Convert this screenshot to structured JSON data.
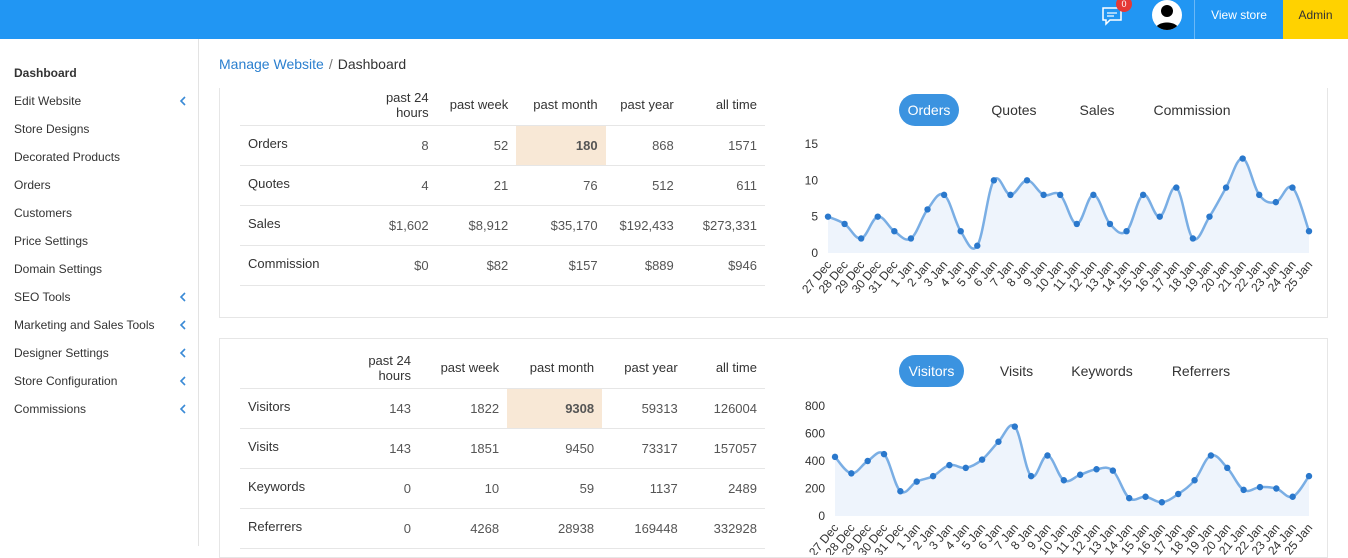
{
  "topbar": {
    "notification_count": "0",
    "view_store_label": "View store",
    "admin_label": "Admin",
    "accent_color": "#2196f3",
    "admin_color": "#ffd200"
  },
  "breadcrumb": {
    "parent": "Manage Website",
    "separator": "/",
    "current": "Dashboard"
  },
  "sidebar": {
    "items": [
      {
        "label": "Dashboard",
        "active": true,
        "has_submenu": false
      },
      {
        "label": "Edit Website",
        "has_submenu": true
      },
      {
        "label": "Store Designs",
        "has_submenu": false
      },
      {
        "label": "Decorated Products",
        "has_submenu": false
      },
      {
        "label": "Orders",
        "has_submenu": false
      },
      {
        "label": "Customers",
        "has_submenu": false
      },
      {
        "label": "Price Settings",
        "has_submenu": false
      },
      {
        "label": "Domain Settings",
        "has_submenu": false
      },
      {
        "label": "SEO Tools",
        "has_submenu": true
      },
      {
        "label": "Marketing and Sales Tools",
        "has_submenu": true
      },
      {
        "label": "Designer Settings",
        "has_submenu": true
      },
      {
        "label": "Store Configuration",
        "has_submenu": true
      },
      {
        "label": "Commissions",
        "has_submenu": true
      }
    ]
  },
  "sales_panel": {
    "columns": [
      "past 24 hours",
      "past week",
      "past month",
      "past year",
      "all time"
    ],
    "rows": [
      {
        "label": "Orders",
        "values": [
          "8",
          "52",
          "180",
          "868",
          "1571"
        ]
      },
      {
        "label": "Quotes",
        "values": [
          "4",
          "21",
          "76",
          "512",
          "611"
        ]
      },
      {
        "label": "Sales",
        "values": [
          "$1,602",
          "$8,912",
          "$35,170",
          "$192,433",
          "$273,331"
        ]
      },
      {
        "label": "Commission",
        "values": [
          "$0",
          "$82",
          "$157",
          "$889",
          "$946"
        ]
      }
    ],
    "tabs": [
      "Orders",
      "Quotes",
      "Sales",
      "Commission"
    ],
    "active_tab": "Orders"
  },
  "traffic_panel": {
    "columns": [
      "past 24 hours",
      "past week",
      "past month",
      "past year",
      "all time"
    ],
    "rows": [
      {
        "label": "Visitors",
        "values": [
          "143",
          "1822",
          "9308",
          "59313",
          "126004"
        ]
      },
      {
        "label": "Visits",
        "values": [
          "143",
          "1851",
          "9450",
          "73317",
          "157057"
        ]
      },
      {
        "label": "Keywords",
        "values": [
          "0",
          "10",
          "59",
          "1137",
          "2489"
        ]
      },
      {
        "label": "Referrers",
        "values": [
          "0",
          "4268",
          "28938",
          "169448",
          "332928"
        ]
      }
    ],
    "tabs": [
      "Visitors",
      "Visits",
      "Keywords",
      "Referrers"
    ],
    "active_tab": "Visitors"
  },
  "chart_data": [
    {
      "type": "area",
      "series": [
        {
          "values": [
            5,
            4,
            2,
            5,
            3,
            2,
            6,
            8,
            3,
            1,
            10,
            8,
            10,
            8,
            8,
            4,
            8,
            4,
            3,
            8,
            5,
            9,
            2,
            5,
            9,
            13,
            8,
            7,
            9,
            3
          ]
        }
      ],
      "x": [
        "27 Dec",
        "28 Dec",
        "29 Dec",
        "30 Dec",
        "31 Dec",
        "1 Jan",
        "2 Jan",
        "3 Jan",
        "4 Jan",
        "5 Jan",
        "6 Jan",
        "7 Jan",
        "8 Jan",
        "9 Jan",
        "10 Jan",
        "11 Jan",
        "12 Jan",
        "13 Jan",
        "14 Jan",
        "15 Jan",
        "16 Jan",
        "17 Jan",
        "18 Jan",
        "19 Jan",
        "20 Jan",
        "21 Jan",
        "22 Jan",
        "23 Jan",
        "24 Jan",
        "25 Jan"
      ],
      "yticks": [
        0,
        5,
        10,
        15
      ],
      "ylim": [
        0,
        15
      ],
      "color": "#7aaee4"
    },
    {
      "type": "area",
      "series": [
        {
          "values": [
            430,
            310,
            400,
            450,
            180,
            250,
            290,
            370,
            350,
            410,
            540,
            650,
            290,
            440,
            260,
            300,
            340,
            330,
            130,
            140,
            100,
            160,
            260,
            440,
            350,
            190,
            210,
            200,
            140,
            290
          ]
        }
      ],
      "x": [
        "27 Dec",
        "28 Dec",
        "29 Dec",
        "30 Dec",
        "31 Dec",
        "1 Jan",
        "2 Jan",
        "3 Jan",
        "4 Jan",
        "5 Jan",
        "6 Jan",
        "7 Jan",
        "8 Jan",
        "9 Jan",
        "10 Jan",
        "11 Jan",
        "12 Jan",
        "13 Jan",
        "14 Jan",
        "15 Jan",
        "16 Jan",
        "17 Jan",
        "18 Jan",
        "19 Jan",
        "20 Jan",
        "21 Jan",
        "22 Jan",
        "23 Jan",
        "24 Jan",
        "25 Jan"
      ],
      "yticks": [
        0,
        200,
        400,
        600,
        800
      ],
      "ylim": [
        0,
        800
      ],
      "color": "#7aaee4"
    }
  ]
}
